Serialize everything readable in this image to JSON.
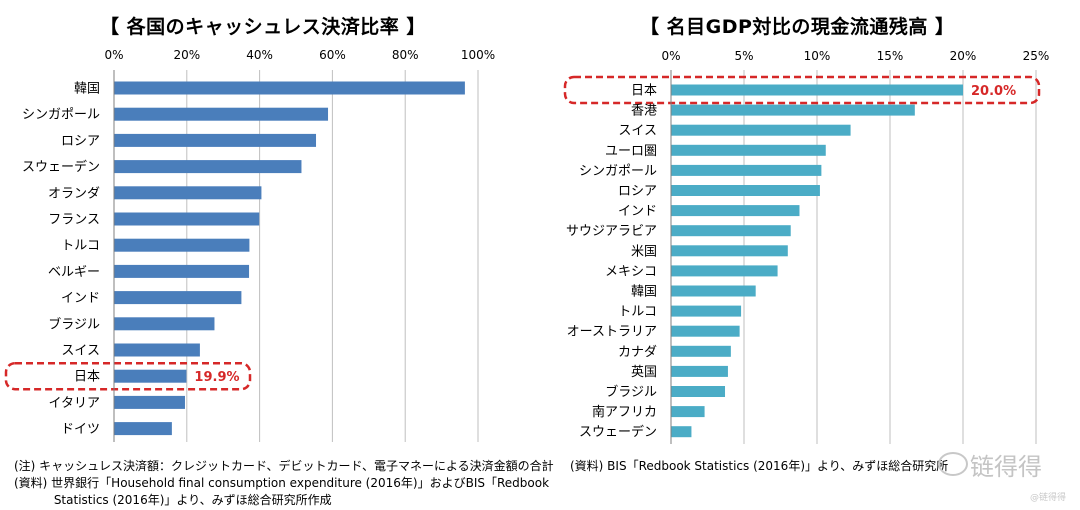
{
  "left": {
    "title": "【 各国のキャッシュレス決済比率 】",
    "note_lines": [
      "(注) キャッシュレス決済額：クレジットカード、デビットカード、電子マネーによる決済金額の合計",
      "(資料) 世界銀行「Household final consumption expenditure (2016年)」およびBIS「Redbook",
      "　　　 Statistics (2016年)」より、みずほ総合研究所作成"
    ]
  },
  "right": {
    "title": "【 名目GDP対比の現金流通残高 】",
    "note_lines": [
      "(資料) BIS「Redbook Statistics (2016年)」より、みずほ総合研究所"
    ]
  },
  "watermark": {
    "text": "链得得",
    "small": "@链得得"
  },
  "colors": {
    "left_bar": "#4a7ebb",
    "right_bar": "#4bacc6",
    "highlight": "#d62828",
    "grid": "#bfbfbf"
  },
  "chart_data": [
    {
      "type": "bar",
      "orientation": "horizontal",
      "title": "【 各国のキャッシュレス決済比率 】",
      "categories": [
        "韓国",
        "シンガポール",
        "ロシア",
        "スウェーデン",
        "オランダ",
        "フランス",
        "トルコ",
        "ベルギー",
        "インド",
        "ブラジル",
        "スイス",
        "日本",
        "イタリア",
        "ドイツ"
      ],
      "values": [
        96.4,
        58.8,
        55.5,
        51.5,
        40.5,
        39.9,
        37.2,
        37.1,
        35.0,
        27.6,
        23.6,
        19.9,
        19.5,
        15.9
      ],
      "xlim": [
        0,
        100
      ],
      "ticks": [
        0,
        20,
        40,
        60,
        80,
        100
      ],
      "tick_labels": [
        "0%",
        "20%",
        "40%",
        "60%",
        "80%",
        "100%"
      ],
      "grid": true,
      "highlight": {
        "category": "日本",
        "label": "19.9%"
      }
    },
    {
      "type": "bar",
      "orientation": "horizontal",
      "title": "【 名目GDP対比の現金流通残高 】",
      "categories": [
        "日本",
        "香港",
        "スイス",
        "ユーロ圏",
        "シンガポール",
        "ロシア",
        "インド",
        "サウジアラビア",
        "米国",
        "メキシコ",
        "韓国",
        "トルコ",
        "オーストラリア",
        "カナダ",
        "英国",
        "ブラジル",
        "南アフリカ",
        "スウェーデン"
      ],
      "values": [
        20.0,
        16.7,
        12.3,
        10.6,
        10.3,
        10.2,
        8.8,
        8.2,
        8.0,
        7.3,
        5.8,
        4.8,
        4.7,
        4.1,
        3.9,
        3.7,
        2.3,
        1.4
      ],
      "xlim": [
        0,
        25
      ],
      "ticks": [
        0,
        5,
        10,
        15,
        20,
        25
      ],
      "tick_labels": [
        "0%",
        "5%",
        "10%",
        "15%",
        "20%",
        "25%"
      ],
      "grid": true,
      "highlight": {
        "category": "日本",
        "label": "20.0%"
      }
    }
  ]
}
